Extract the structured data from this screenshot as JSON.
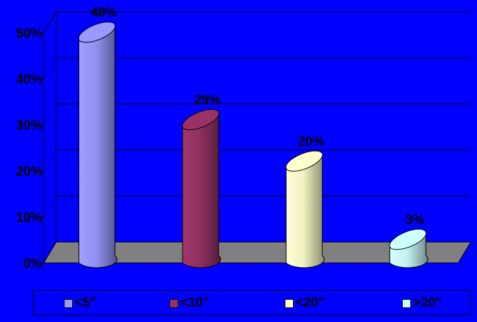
{
  "chart_data": {
    "type": "bar",
    "style": "3d-cylinder",
    "categories": [
      "<5\"",
      "<10\"",
      "<20\"",
      ">20\""
    ],
    "values": [
      48,
      29,
      20,
      3
    ],
    "data_labels": [
      "48%",
      "29%",
      "20%",
      "3%"
    ],
    "y_ticks": [
      "0%",
      "10%",
      "20%",
      "30%",
      "40%",
      "50%"
    ],
    "ylim": [
      0,
      50
    ],
    "title": "",
    "xlabel": "",
    "ylabel": "",
    "grid": true,
    "legend_position": "bottom",
    "colors": [
      "#9999ff",
      "#993366",
      "#ffffcc",
      "#ccffff"
    ],
    "background_color": "#0000ff",
    "floor_color": "#808080"
  }
}
